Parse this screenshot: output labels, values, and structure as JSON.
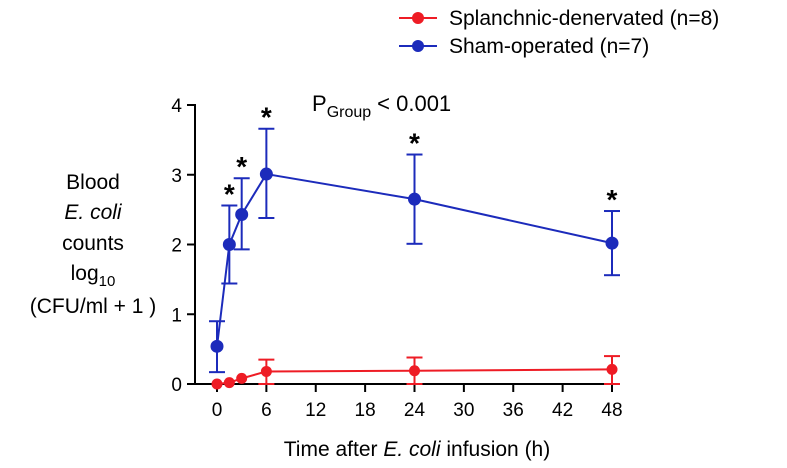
{
  "chart_data": {
    "type": "line",
    "annotation": {
      "p_main": "P",
      "p_sub": "Group",
      "p_rest": "< 0.001"
    },
    "ylabel": {
      "line1": "Blood",
      "line2": "E. coli",
      "line3": "counts",
      "line4_main": "log",
      "line4_sub": "10",
      "line5": "(CFU/ml + 1 )"
    },
    "xlabel": {
      "prefix": "Time after ",
      "italic": "E. coli",
      "suffix": " infusion (h)"
    },
    "xlim": [
      0,
      48
    ],
    "ylim": [
      0,
      4
    ],
    "x_ticks": [
      0,
      6,
      12,
      18,
      24,
      30,
      36,
      42,
      48
    ],
    "y_ticks": [
      0,
      1,
      2,
      3,
      4
    ],
    "legend_position": "top-right",
    "series": [
      {
        "name": "Splanchnic-denervated (n=8)",
        "color": "#ee1c25",
        "x": [
          0,
          1.5,
          3,
          6,
          24,
          48
        ],
        "y": [
          0.0,
          0.02,
          0.08,
          0.18,
          0.19,
          0.21
        ],
        "err_upper": [
          0.0,
          0.0,
          0.0,
          0.17,
          0.19,
          0.19
        ],
        "err_lower": [
          0.0,
          0.0,
          0.0,
          0.18,
          0.19,
          0.21
        ]
      },
      {
        "name": "Sham-operated (n=7)",
        "color": "#1c2bbb",
        "x": [
          0,
          1.5,
          3,
          6,
          24,
          48
        ],
        "y": [
          0.54,
          2.0,
          2.43,
          3.01,
          2.65,
          2.02
        ],
        "err_upper": [
          0.36,
          0.56,
          0.52,
          0.65,
          0.64,
          0.46
        ],
        "err_lower": [
          0.37,
          0.56,
          0.5,
          0.63,
          0.64,
          0.46
        ]
      }
    ],
    "significance": [
      {
        "x": 1.5,
        "label": "*"
      },
      {
        "x": 3,
        "label": "*"
      },
      {
        "x": 6,
        "label": "*"
      },
      {
        "x": 24,
        "label": "*"
      },
      {
        "x": 48,
        "label": "*"
      }
    ]
  }
}
